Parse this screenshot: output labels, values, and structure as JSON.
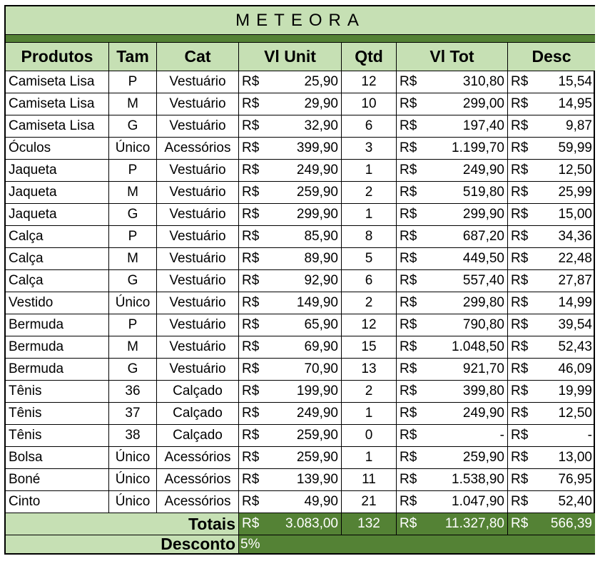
{
  "title": "METEORA",
  "currency": "R$",
  "table": {
    "headers": [
      "Produtos",
      "Tam",
      "Cat",
      "Vl Unit",
      "Qtd",
      "Vl Tot",
      "Desc"
    ],
    "rows": [
      [
        "Camiseta Lisa",
        "P",
        "Vestuário",
        "25,90",
        12,
        "310,80",
        "15,54"
      ],
      [
        "Camiseta Lisa",
        "M",
        "Vestuário",
        "29,90",
        10,
        "299,00",
        "14,95"
      ],
      [
        "Camiseta Lisa",
        "G",
        "Vestuário",
        "32,90",
        6,
        "197,40",
        "9,87"
      ],
      [
        "Óculos",
        "Único",
        "Acessórios",
        "399,90",
        3,
        "1.199,70",
        "59,99"
      ],
      [
        "Jaqueta",
        "P",
        "Vestuário",
        "249,90",
        1,
        "249,90",
        "12,50"
      ],
      [
        "Jaqueta",
        "M",
        "Vestuário",
        "259,90",
        2,
        "519,80",
        "25,99"
      ],
      [
        "Jaqueta",
        "G",
        "Vestuário",
        "299,90",
        1,
        "299,90",
        "15,00"
      ],
      [
        "Calça",
        "P",
        "Vestuário",
        "85,90",
        8,
        "687,20",
        "34,36"
      ],
      [
        "Calça",
        "M",
        "Vestuário",
        "89,90",
        5,
        "449,50",
        "22,48"
      ],
      [
        "Calça",
        "G",
        "Vestuário",
        "92,90",
        6,
        "557,40",
        "27,87"
      ],
      [
        "Vestido",
        "Único",
        "Vestuário",
        "149,90",
        2,
        "299,80",
        "14,99"
      ],
      [
        "Bermuda",
        "P",
        "Vestuário",
        "65,90",
        12,
        "790,80",
        "39,54"
      ],
      [
        "Bermuda",
        "M",
        "Vestuário",
        "69,90",
        15,
        "1.048,50",
        "52,43"
      ],
      [
        "Bermuda",
        "G",
        "Vestuário",
        "70,90",
        13,
        "921,70",
        "46,09"
      ],
      [
        "Tênis",
        "36",
        "Calçado",
        "199,90",
        2,
        "399,80",
        "19,99"
      ],
      [
        "Tênis",
        "37",
        "Calçado",
        "249,90",
        1,
        "249,90",
        "12,50"
      ],
      [
        "Tênis",
        "38",
        "Calçado",
        "259,90",
        0,
        "-",
        "-"
      ],
      [
        "Bolsa",
        "Único",
        "Acessórios",
        "259,90",
        1,
        "259,90",
        "13,00"
      ],
      [
        "Boné",
        "Único",
        "Acessórios",
        "139,90",
        11,
        "1.538,90",
        "76,95"
      ],
      [
        "Cinto",
        "Único",
        "Acessórios",
        "49,90",
        21,
        "1.047,90",
        "52,40"
      ]
    ],
    "totals": {
      "label": "Totais",
      "unit": "3.083,00",
      "qty": 132,
      "total": "11.327,80",
      "discount": "566,39"
    },
    "discount_rate": {
      "label": "Desconto",
      "value": "5%"
    }
  }
}
